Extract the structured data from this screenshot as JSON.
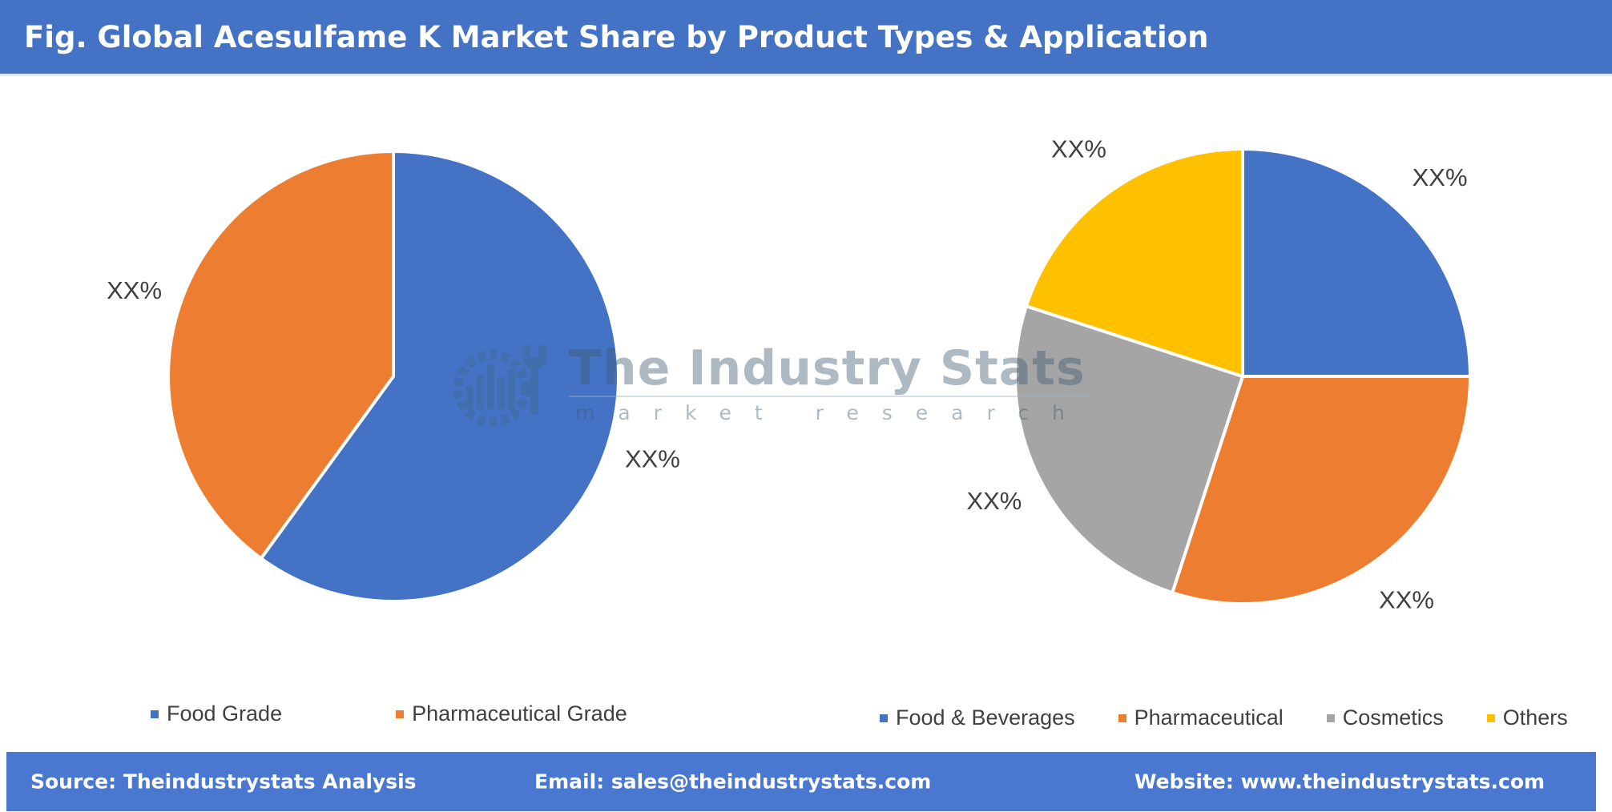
{
  "header": {
    "title": "Fig. Global Acesulfame K Market Share by Product Types & Application"
  },
  "watermark": {
    "title": "The Industry Stats",
    "subtitle": "market research"
  },
  "chart_data": [
    {
      "type": "pie",
      "title": "",
      "categories": [
        "Food Grade",
        "Pharmaceutical Grade"
      ],
      "values": [
        60,
        40
      ],
      "labels": [
        "XX%",
        "XX%"
      ],
      "colors": [
        "#4472c4",
        "#ed7d31"
      ],
      "legend_position": "bottom"
    },
    {
      "type": "pie",
      "title": "",
      "categories": [
        "Food & Beverages",
        "Pharmaceutical",
        "Cosmetics",
        "Others"
      ],
      "values": [
        25,
        30,
        25,
        20
      ],
      "labels": [
        "XX%",
        "XX%",
        "XX%",
        "XX%"
      ],
      "colors": [
        "#4472c4",
        "#ed7d31",
        "#a5a5a5",
        "#ffc000"
      ],
      "legend_position": "bottom"
    }
  ],
  "footer": {
    "source": "Source: Theindustrystats Analysis",
    "email": "Email: sales@theindustrystats.com",
    "website": "Website: www.theindustrystats.com"
  }
}
